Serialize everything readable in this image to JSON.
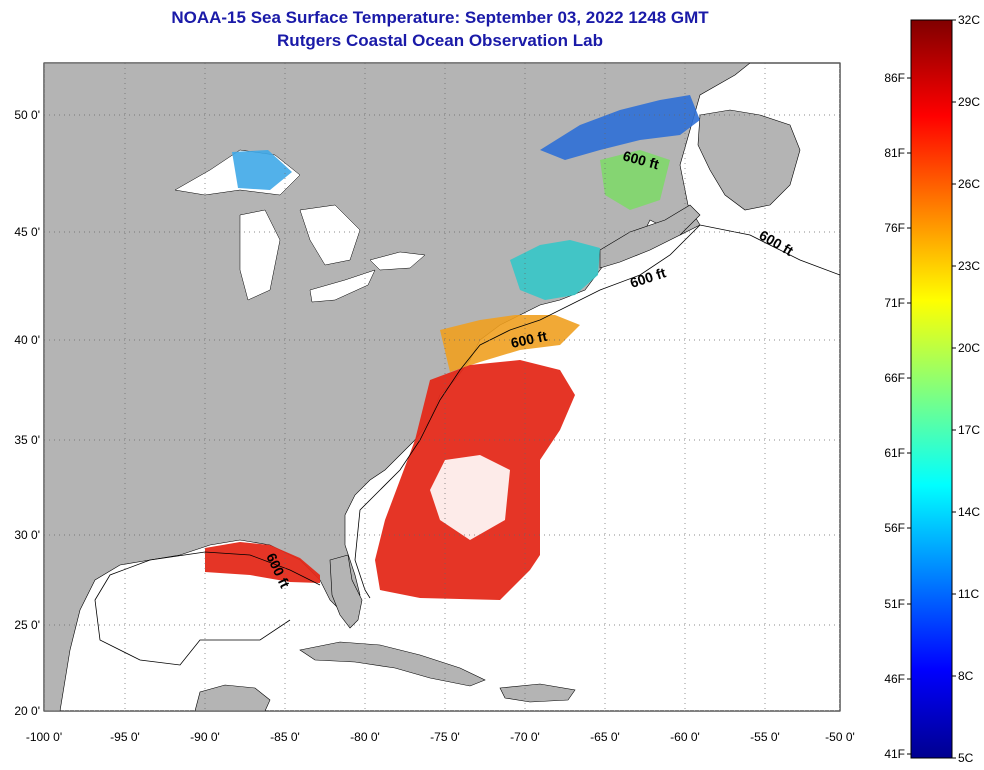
{
  "title": "NOAA-15 Sea Surface Temperature:  September 03, 2022 1248 GMT",
  "subtitle": "Rutgers Coastal Ocean Observation Lab",
  "lat_ticks": [
    "50 0'",
    "45 0'",
    "40 0'",
    "35 0'",
    "30 0'",
    "25 0'",
    "20 0'"
  ],
  "lon_ticks": [
    "-100 0'",
    "-95 0'",
    "-90 0'",
    "-85 0'",
    "-80 0'",
    "-75 0'",
    "-70 0'",
    "-65 0'",
    "-60 0'",
    "-55 0'",
    "-50 0'"
  ],
  "contour_label": "600 ft",
  "colorbar": {
    "celsius": [
      "32C",
      "29C",
      "26C",
      "23C",
      "20C",
      "17C",
      "14C",
      "11C",
      "8C",
      "5C"
    ],
    "fahrenheit": [
      "86F",
      "81F",
      "76F",
      "71F",
      "66F",
      "61F",
      "56F",
      "51F",
      "46F",
      "41F"
    ]
  },
  "colors": {
    "land": "#b4b4b4",
    "ocean_nodata": "#ffffff",
    "title": "#1a1aa8"
  }
}
